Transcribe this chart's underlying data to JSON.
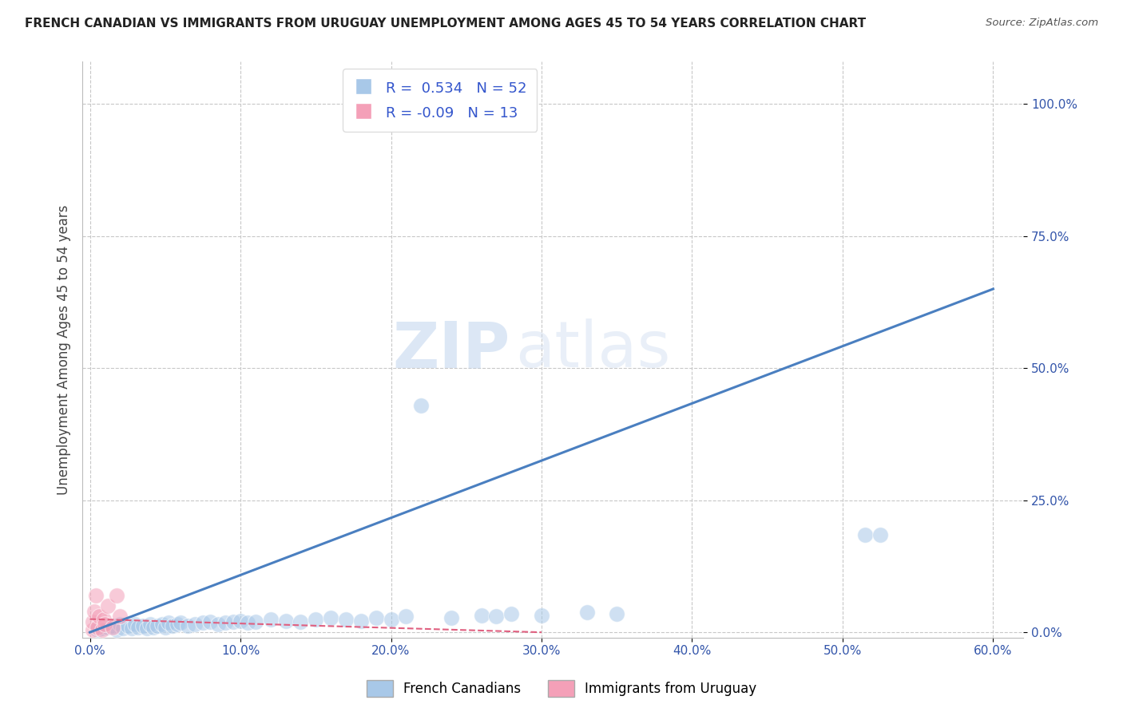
{
  "title": "FRENCH CANADIAN VS IMMIGRANTS FROM URUGUAY UNEMPLOYMENT AMONG AGES 45 TO 54 YEARS CORRELATION CHART",
  "source": "Source: ZipAtlas.com",
  "ylabel": "Unemployment Among Ages 45 to 54 years",
  "xlim": [
    -0.005,
    0.62
  ],
  "ylim": [
    -0.01,
    1.08
  ],
  "xtick_labels": [
    "0.0%",
    "10.0%",
    "20.0%",
    "30.0%",
    "40.0%",
    "50.0%",
    "60.0%"
  ],
  "xtick_values": [
    0.0,
    0.1,
    0.2,
    0.3,
    0.4,
    0.5,
    0.6
  ],
  "ytick_labels": [
    "0.0%",
    "25.0%",
    "50.0%",
    "75.0%",
    "100.0%"
  ],
  "ytick_values": [
    0.0,
    0.25,
    0.5,
    0.75,
    1.0
  ],
  "legend1_label": "French Canadians",
  "legend2_label": "Immigrants from Uruguay",
  "r1": 0.534,
  "n1": 52,
  "r2": -0.09,
  "n2": 13,
  "blue_color": "#a8c8e8",
  "pink_color": "#f4a0b8",
  "blue_line_color": "#4a7fc0",
  "pink_line_color": "#e06080",
  "blue_line_x": [
    0.0,
    0.6
  ],
  "blue_line_y": [
    0.0,
    0.65
  ],
  "pink_line_x": [
    0.0,
    0.3
  ],
  "pink_line_y": [
    0.025,
    0.0
  ],
  "watermark_zip": "ZIP",
  "watermark_atlas": "atlas",
  "background_color": "#ffffff",
  "grid_color": "#c8c8c8",
  "title_color": "#222222",
  "axis_color": "#888888",
  "tick_color": "#3355aa",
  "blue_scatter_x": [
    0.005,
    0.008,
    0.012,
    0.015,
    0.018,
    0.02,
    0.022,
    0.025,
    0.028,
    0.03,
    0.032,
    0.035,
    0.038,
    0.04,
    0.042,
    0.045,
    0.048,
    0.05,
    0.052,
    0.055,
    0.058,
    0.06,
    0.065,
    0.07,
    0.075,
    0.08,
    0.085,
    0.09,
    0.095,
    0.1,
    0.105,
    0.11,
    0.12,
    0.13,
    0.14,
    0.15,
    0.16,
    0.17,
    0.18,
    0.19,
    0.2,
    0.21,
    0.22,
    0.24,
    0.26,
    0.27,
    0.28,
    0.3,
    0.33,
    0.35,
    0.515,
    0.525
  ],
  "blue_scatter_y": [
    0.005,
    0.008,
    0.01,
    0.012,
    0.005,
    0.015,
    0.008,
    0.012,
    0.008,
    0.015,
    0.01,
    0.012,
    0.008,
    0.015,
    0.01,
    0.012,
    0.015,
    0.01,
    0.018,
    0.012,
    0.015,
    0.018,
    0.012,
    0.015,
    0.018,
    0.02,
    0.015,
    0.018,
    0.02,
    0.022,
    0.018,
    0.02,
    0.025,
    0.022,
    0.02,
    0.025,
    0.028,
    0.025,
    0.022,
    0.028,
    0.025,
    0.03,
    0.43,
    0.028,
    0.032,
    0.03,
    0.035,
    0.032,
    0.038,
    0.035,
    0.185,
    0.185
  ],
  "pink_scatter_x": [
    0.002,
    0.002,
    0.003,
    0.004,
    0.005,
    0.006,
    0.008,
    0.009,
    0.01,
    0.012,
    0.015,
    0.018,
    0.02
  ],
  "pink_scatter_y": [
    0.005,
    0.02,
    0.04,
    0.07,
    0.01,
    0.03,
    0.005,
    0.025,
    0.015,
    0.05,
    0.01,
    0.07,
    0.03
  ]
}
